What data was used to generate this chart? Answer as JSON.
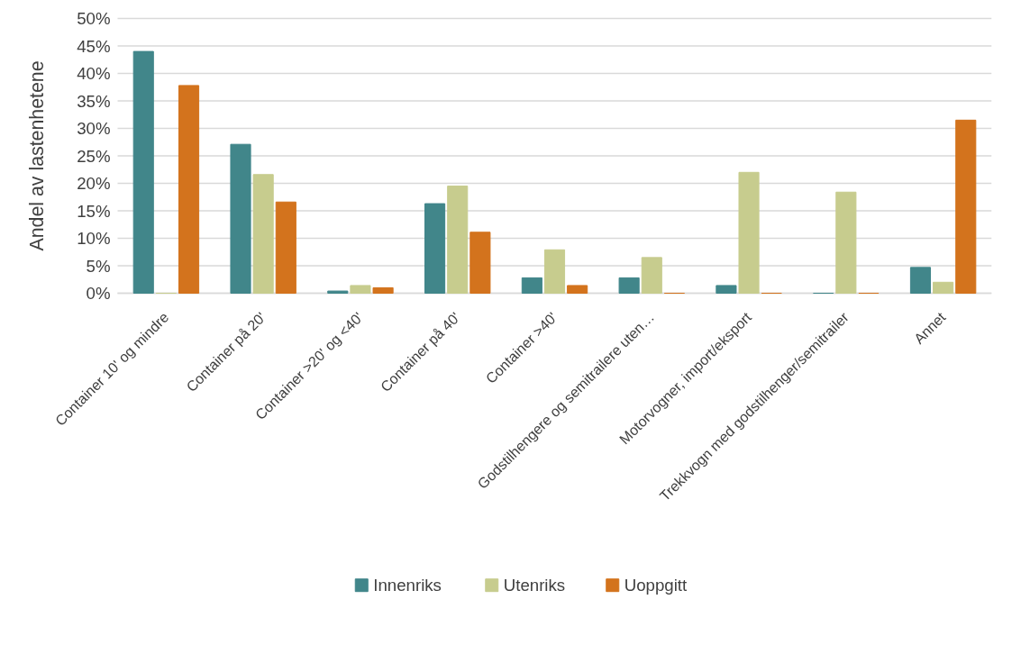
{
  "chart_data": {
    "type": "bar",
    "ylabel": "Andel av lastenhetene",
    "categories": [
      "Container 10' og mindre",
      "Container på 20'",
      "Container >20' og <40'",
      "Container på 40'",
      "Container >40'",
      "Godstilhengere og semitrailere uten…",
      "Motorvogner, import/eksport",
      "Trekkvogn med godstilhenger/semitrailer",
      "Annet"
    ],
    "series": [
      {
        "name": "Innenriks",
        "color": "#41868a",
        "values": [
          44.0,
          27.1,
          0.4,
          16.3,
          2.8,
          2.8,
          1.4,
          0,
          4.7
        ]
      },
      {
        "name": "Utenriks",
        "color": "#c7cc8e",
        "values": [
          0,
          21.6,
          1.4,
          19.5,
          7.9,
          6.5,
          22.0,
          18.4,
          2.0
        ]
      },
      {
        "name": "Uoppgitt",
        "color": "#d3731d",
        "values": [
          37.8,
          16.6,
          1.0,
          11.1,
          1.4,
          0,
          0,
          0,
          31.5
        ]
      }
    ],
    "ylim": [
      0,
      50
    ],
    "yticks": [
      {
        "value": 0,
        "label": "0%"
      },
      {
        "value": 5,
        "label": "5%"
      },
      {
        "value": 10,
        "label": "10%"
      },
      {
        "value": 15,
        "label": "15%"
      },
      {
        "value": 20,
        "label": "20%"
      },
      {
        "value": 25,
        "label": "25%"
      },
      {
        "value": 30,
        "label": "30%"
      },
      {
        "value": 35,
        "label": "35%"
      },
      {
        "value": 40,
        "label": "40%"
      },
      {
        "value": 45,
        "label": "45%"
      },
      {
        "value": 50,
        "label": "50%"
      }
    ],
    "grid": "y",
    "legend": "bottom"
  }
}
